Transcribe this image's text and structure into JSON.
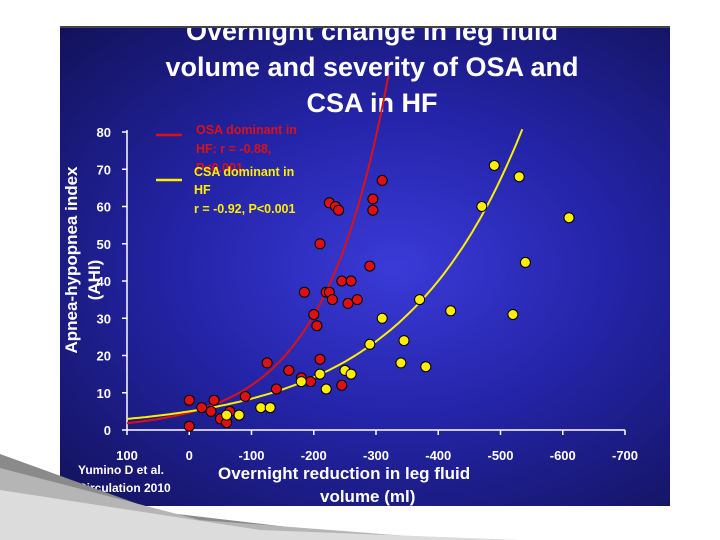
{
  "chart_data": {
    "type": "scatter",
    "title_lines": [
      "Overnight change in leg fluid",
      "volume and severity of OSA and",
      "CSA in HF"
    ],
    "xlabel_lines": [
      "Overnight reduction in leg fluid",
      "volume (ml)"
    ],
    "ylabel_lines": [
      "Apnea-hypopnea index",
      "(AHI)"
    ],
    "xlim": [
      100,
      -700
    ],
    "ylim": [
      0,
      80
    ],
    "x_ticks": [
      100,
      0,
      -100,
      -200,
      -300,
      -400,
      -500,
      -600,
      -700
    ],
    "y_ticks": [
      0,
      10,
      20,
      30,
      40,
      50,
      60,
      70,
      80
    ],
    "series": [
      {
        "name": "OSA dominant in HF",
        "legend_lines": [
          "OSA dominant in",
          "HF: r = -0.88,",
          "P<0.001"
        ],
        "color": "#dd1111",
        "points": [
          [
            0,
            8
          ],
          [
            0,
            1
          ],
          [
            -20,
            6
          ],
          [
            -40,
            8
          ],
          [
            -35,
            5
          ],
          [
            -50,
            3
          ],
          [
            -60,
            2
          ],
          [
            -65,
            5
          ],
          [
            -90,
            9
          ],
          [
            -125,
            18
          ],
          [
            -140,
            11
          ],
          [
            -160,
            16
          ],
          [
            -180,
            14
          ],
          [
            -195,
            13
          ],
          [
            -200,
            31
          ],
          [
            -205,
            28
          ],
          [
            -210,
            19
          ],
          [
            -185,
            37
          ],
          [
            -210,
            50
          ],
          [
            -220,
            37
          ],
          [
            -225,
            37
          ],
          [
            -230,
            35
          ],
          [
            -245,
            12
          ],
          [
            -245,
            40
          ],
          [
            -255,
            34
          ],
          [
            -260,
            40
          ],
          [
            -270,
            35
          ],
          [
            -225,
            61
          ],
          [
            -235,
            60
          ],
          [
            -240,
            59
          ],
          [
            -290,
            44
          ],
          [
            -295,
            59
          ],
          [
            -295,
            62
          ],
          [
            -310,
            67
          ]
        ]
      },
      {
        "name": "CSA dominant in HF",
        "legend_lines": [
          "CSA dominant in",
          "HF",
          "r = -0.92, P<0.001"
        ],
        "color": "#ffee00",
        "points": [
          [
            -60,
            4
          ],
          [
            -80,
            4
          ],
          [
            -115,
            6
          ],
          [
            -130,
            6
          ],
          [
            -180,
            13
          ],
          [
            -210,
            15
          ],
          [
            -220,
            11
          ],
          [
            -250,
            16
          ],
          [
            -260,
            15
          ],
          [
            -290,
            23
          ],
          [
            -310,
            30
          ],
          [
            -340,
            18
          ],
          [
            -345,
            24
          ],
          [
            -370,
            35
          ],
          [
            -380,
            17
          ],
          [
            -420,
            32
          ],
          [
            -470,
            60
          ],
          [
            -490,
            71
          ],
          [
            -520,
            31
          ],
          [
            -530,
            68
          ],
          [
            -540,
            45
          ],
          [
            -610,
            57
          ]
        ]
      }
    ],
    "citation_lines": [
      "Yumino D et al.",
      "Circulation 2010"
    ]
  }
}
